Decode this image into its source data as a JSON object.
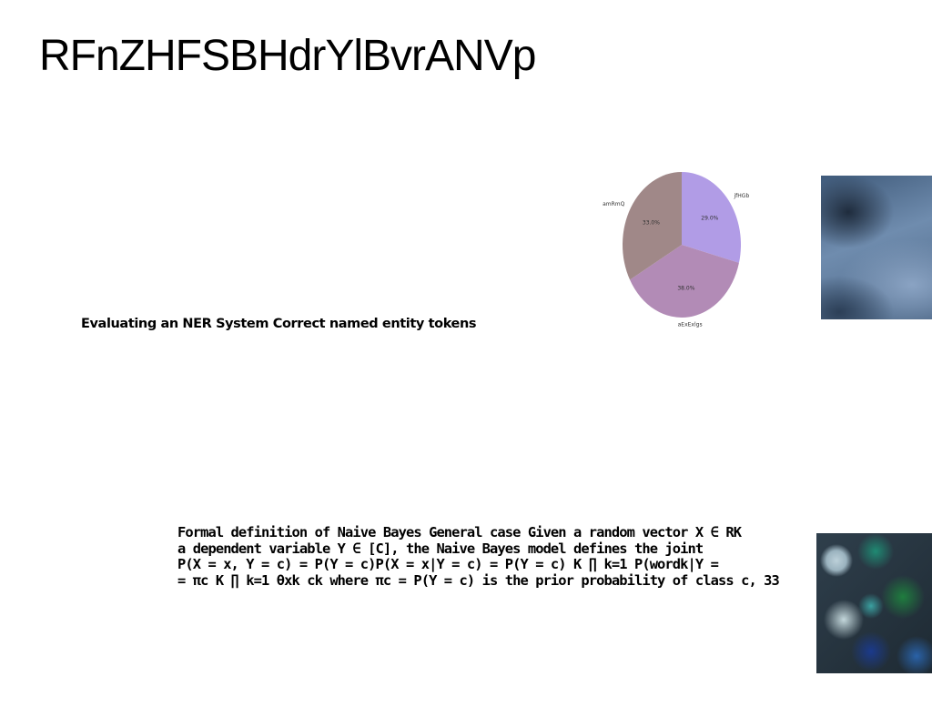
{
  "slide": {
    "title": "RFnZHFSBHdrYlBvrANVp",
    "text_block_1": "Evaluating an NER System Correct named entity tokens",
    "text_block_2_lines": [
      "Formal definition of Naive Bayes General case Given a random vector X ∈ RK",
      "a dependent variable Y ∈ [C], the Naive Bayes model defines the joint",
      "P(X = x, Y = c) = P(Y = c)P(X = x|Y = c) = P(Y = c) K ∏ k=1 P(wordk|Y =",
      "= πc K ∏ k=1 θxk ck where πc = P(Y = c) is the prior probability of class c, 33"
    ]
  },
  "chart_data": {
    "type": "pie",
    "slices": [
      {
        "label": "jfHGb",
        "value": 29.0,
        "pct_label": "29.0%",
        "color": "#b19ce6"
      },
      {
        "label": "aExExlgs",
        "value": 38.0,
        "pct_label": "38.0%",
        "color": "#b28bb6"
      },
      {
        "label": "amRmQ",
        "value": 33.0,
        "pct_label": "33.0%",
        "color": "#a08888"
      }
    ],
    "start_angle_deg": 90,
    "direction": "clockwise"
  }
}
